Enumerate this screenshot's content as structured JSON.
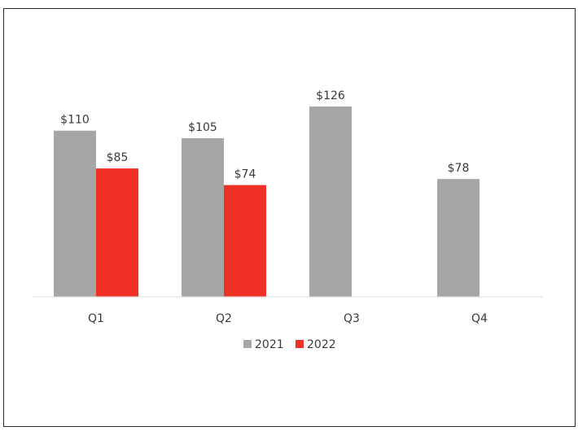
{
  "chart_data": {
    "type": "bar",
    "categories": [
      "Q1",
      "Q2",
      "Q3",
      "Q4"
    ],
    "series": [
      {
        "name": "2021",
        "values": [
          110,
          105,
          126,
          78
        ],
        "labels": [
          "$110",
          "$105",
          "$126",
          "$78"
        ],
        "color": "#a6a6a6"
      },
      {
        "name": "2022",
        "values": [
          85,
          74,
          null,
          null
        ],
        "labels": [
          "$85",
          "$74",
          "",
          ""
        ],
        "color": "#ee3124"
      }
    ],
    "title": "",
    "xlabel": "",
    "ylabel": "",
    "ylim": [
      0,
      126
    ],
    "grid": false,
    "legend_position": "bottom-center"
  }
}
